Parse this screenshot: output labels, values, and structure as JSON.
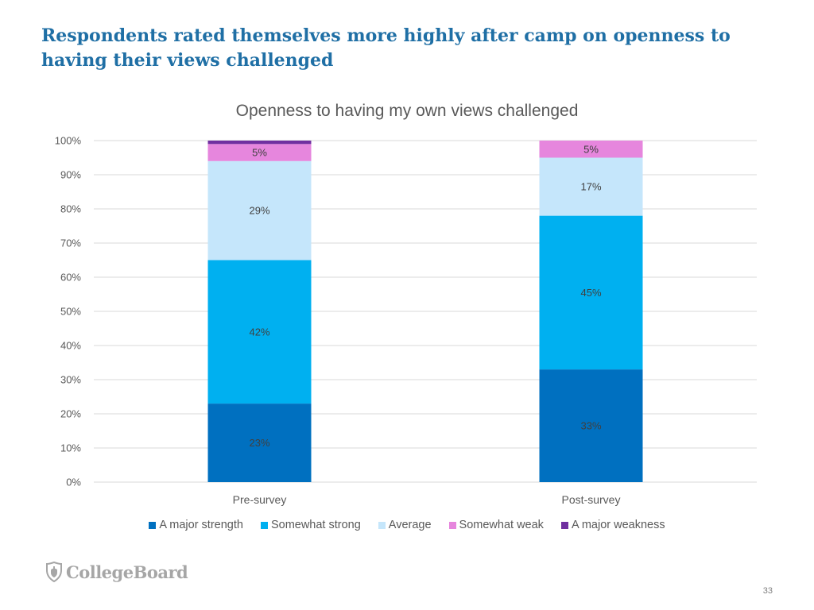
{
  "slide": {
    "title": "Respondents rated themselves more highly after camp on openness to having their views challenged",
    "page_number": "33",
    "logo_text": "CollegeBoard"
  },
  "chart_data": {
    "type": "bar",
    "stacked": true,
    "title": "Openness to having my own views challenged",
    "categories": [
      "Pre-survey",
      "Post-survey"
    ],
    "series": [
      {
        "name": "A major strength",
        "values": [
          23,
          33
        ],
        "labels": [
          "23%",
          "33%"
        ],
        "color": "#0070c0",
        "label_color": "#5a5a5a"
      },
      {
        "name": "Somewhat strong",
        "values": [
          42,
          45
        ],
        "labels": [
          "42%",
          "45%"
        ],
        "color": "#00b0f0",
        "label_color": "#404040"
      },
      {
        "name": "Average",
        "values": [
          29,
          17
        ],
        "labels": [
          "29%",
          "17%"
        ],
        "color": "#c5e6fb",
        "label_color": "#404040"
      },
      {
        "name": "Somewhat weak",
        "values": [
          5,
          5
        ],
        "labels": [
          "5%",
          "5%"
        ],
        "color": "#e686dd",
        "label_color": "#404040"
      },
      {
        "name": "A major weakness",
        "values": [
          1,
          0
        ],
        "labels": [
          "",
          ""
        ],
        "color": "#7030a0",
        "label_color": "#404040"
      }
    ],
    "ylim": [
      0,
      100
    ],
    "yticks": [
      "0%",
      "10%",
      "20%",
      "30%",
      "40%",
      "50%",
      "60%",
      "70%",
      "80%",
      "90%",
      "100%"
    ],
    "grid": true,
    "legend": "bottom",
    "colors": {
      "grid": "#d9d9d9",
      "axis_text": "#595959"
    }
  }
}
